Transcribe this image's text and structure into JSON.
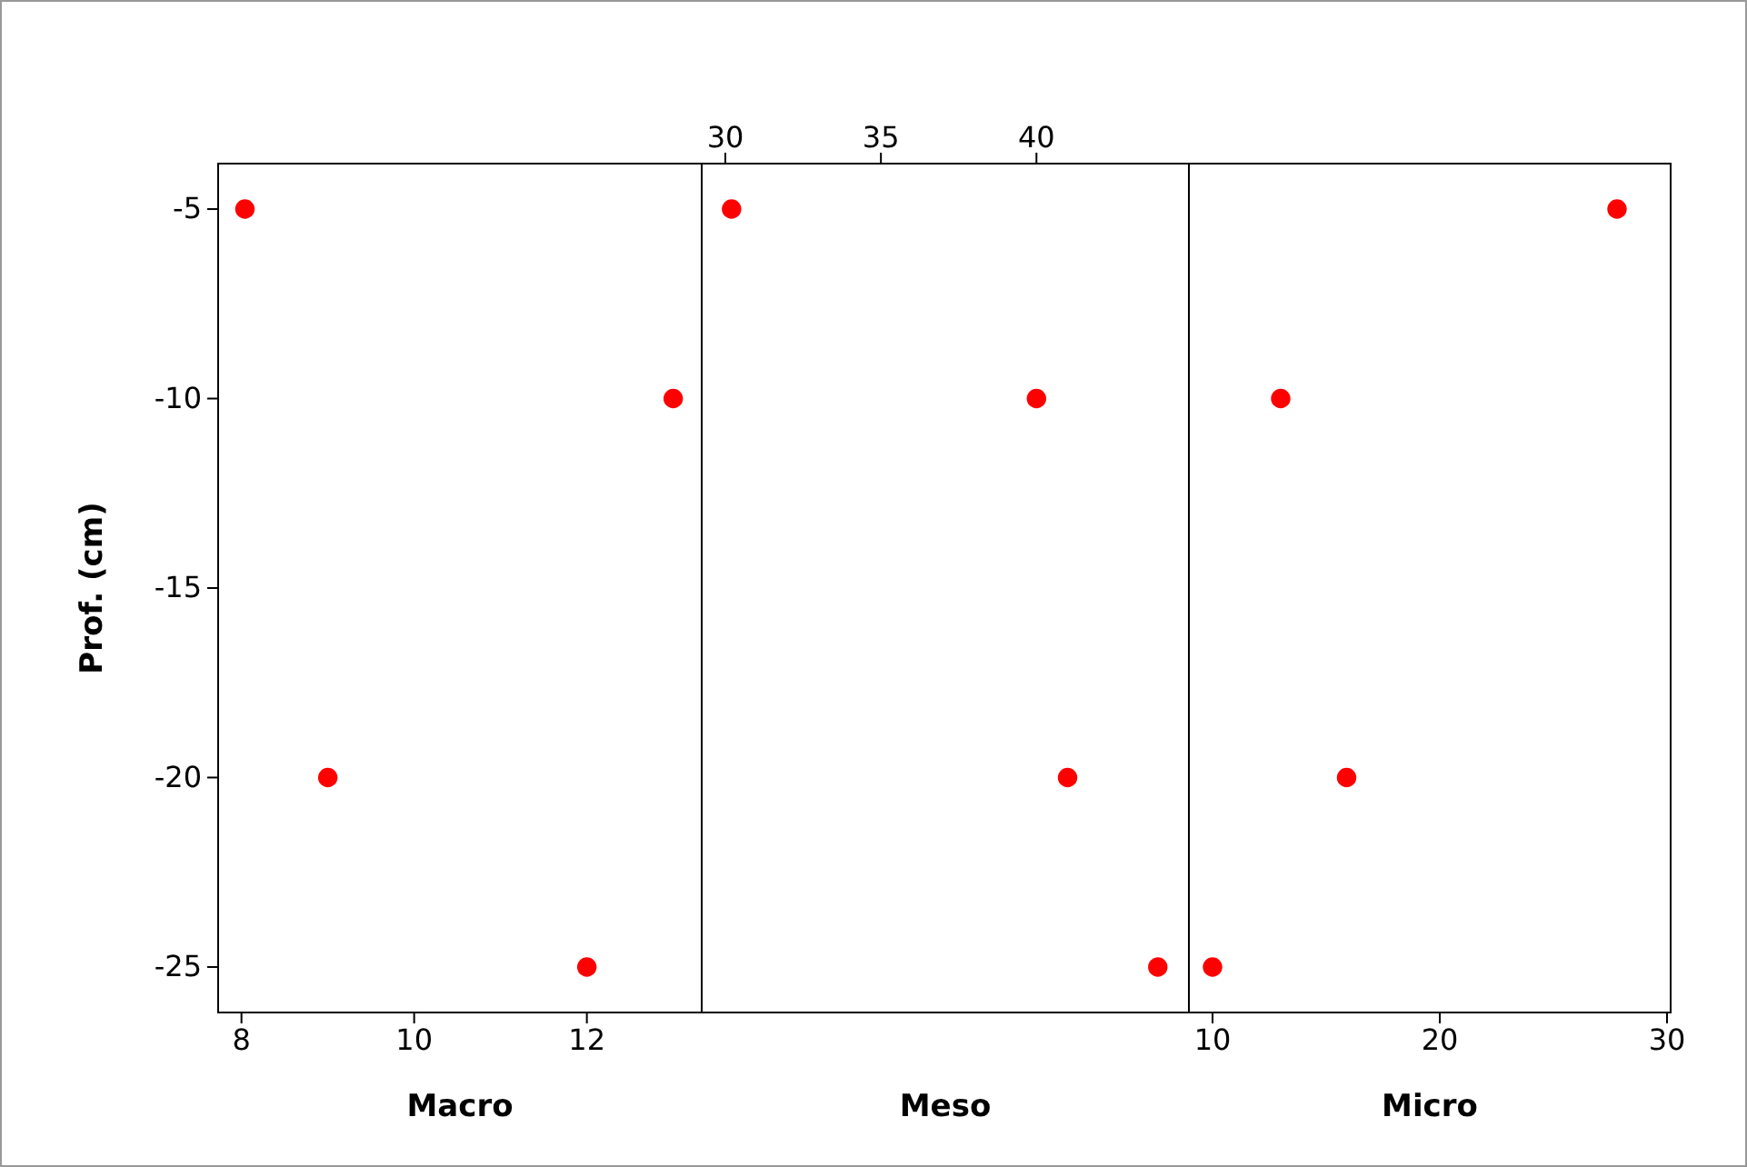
{
  "chart_data": [
    {
      "type": "scatter",
      "xlabel": "Macro",
      "ylabel": "Prof. (cm)",
      "x": [
        8.04,
        13.0,
        9.0,
        12.0
      ],
      "values": [
        -5,
        -10,
        -20,
        -25
      ],
      "color": "#ff0000",
      "marker": "circle",
      "xlim": [
        7.73,
        13.33
      ],
      "xticks": [
        8,
        10,
        12
      ],
      "ylim": [
        -26.2,
        -3.8
      ],
      "yticks": [
        -5,
        -10,
        -15,
        -20,
        -25
      ],
      "grid": false
    },
    {
      "type": "scatter",
      "xlabel": "Meso",
      "x": [
        30.2,
        40.0,
        41.0,
        43.9
      ],
      "values": [
        -5,
        -10,
        -20,
        -25
      ],
      "color": "#ff0000",
      "marker": "circle",
      "xlim": [
        29.24,
        44.9
      ],
      "xticks": [
        30,
        35,
        40
      ],
      "ylim": [
        -26.2,
        -3.8
      ],
      "tick_labels": "x",
      "grid": false
    },
    {
      "type": "scatter",
      "xlabel": "Micro",
      "x": [
        27.8,
        13.0,
        15.9,
        10.0
      ],
      "values": [
        -5,
        -10,
        -20,
        -25
      ],
      "color": "#ff0000",
      "marker": "circle",
      "xlim": [
        8.96,
        30.16
      ],
      "xticks": [
        10,
        20,
        30
      ],
      "ylim": [
        -26.2,
        -3.8
      ],
      "tick_labels": "x",
      "grid": false
    }
  ]
}
